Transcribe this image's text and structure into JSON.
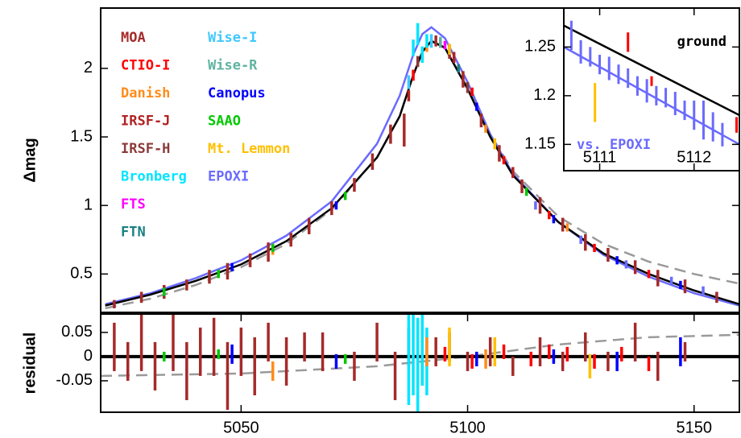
{
  "chart_data": [
    {
      "type": "scatter",
      "ylabel": "Δmag",
      "xlim": [
        5019,
        5160
      ],
      "ylim": [
        0.22,
        2.44
      ],
      "yticks": [
        0.5,
        1,
        1.5,
        2
      ],
      "series": [
        {
          "name": "MOA",
          "color": "#a52a2a",
          "x": [
            5022,
            5028,
            5033,
            5038,
            5043,
            5047,
            5052,
            5056,
            5061,
            5065,
            5070,
            5075,
            5079,
            5083,
            5086,
            5090,
            5093,
            5096,
            5099,
            5103,
            5107,
            5112,
            5116,
            5121,
            5126,
            5131,
            5137,
            5142,
            5148,
            5155
          ],
          "values": [
            0.28,
            0.33,
            0.37,
            0.42,
            0.48,
            0.52,
            0.6,
            0.66,
            0.75,
            0.85,
            0.98,
            1.15,
            1.32,
            1.52,
            1.55,
            2.1,
            2.2,
            2.12,
            1.92,
            1.62,
            1.38,
            1.14,
            1.0,
            0.86,
            0.73,
            0.64,
            0.55,
            0.47,
            0.41,
            0.33
          ],
          "errors": [
            0.03,
            0.04,
            0.05,
            0.04,
            0.05,
            0.06,
            0.05,
            0.07,
            0.05,
            0.06,
            0.05,
            0.05,
            0.06,
            0.07,
            0.12,
            0.05,
            0.04,
            0.05,
            0.06,
            0.05,
            0.06,
            0.05,
            0.06,
            0.05,
            0.06,
            0.05,
            0.05,
            0.06,
            0.05,
            0.04
          ]
        },
        {
          "name": "CTIO-I",
          "color": "#ff0000",
          "x": [
            5088,
            5094,
            5101,
            5108,
            5118,
            5128,
            5140
          ],
          "values": [
            1.95,
            2.18,
            1.83,
            1.33,
            0.93,
            0.69,
            0.5
          ],
          "errors": [
            0.04,
            0.03,
            0.03,
            0.03,
            0.03,
            0.03,
            0.03
          ]
        },
        {
          "name": "Danish",
          "color": "#ff8c1a",
          "x": [
            5057,
            5091,
            5104,
            5122
          ],
          "values": [
            0.68,
            2.15,
            1.56,
            0.84
          ],
          "errors": [
            0.04,
            0.03,
            0.03,
            0.03
          ]
        },
        {
          "name": "IRSF-J",
          "color": "#b22222",
          "x": [
            5087,
            5097,
            5110
          ],
          "values": [
            1.8,
            2.08,
            1.24
          ],
          "errors": [
            0.04,
            0.04,
            0.04
          ]
        },
        {
          "name": "IRSF-H",
          "color": "#8b3a3a",
          "x": [
            5089,
            5100
          ],
          "values": [
            2.05,
            1.86
          ],
          "errors": [
            0.04,
            0.04
          ]
        },
        {
          "name": "Bronberg",
          "color": "#00e5ff",
          "x": [
            5088,
            5089,
            5090,
            5091
          ],
          "values": [
            2.15,
            2.25,
            2.1,
            2.2
          ],
          "errors": [
            0.06,
            0.08,
            0.06,
            0.05
          ]
        },
        {
          "name": "FTS",
          "color": "#ff00ff",
          "x": [
            5095
          ],
          "values": [
            2.17
          ],
          "errors": [
            0.03
          ]
        },
        {
          "name": "FTN",
          "color": "#1a8080",
          "x": [
            5098
          ],
          "values": [
            2.0
          ],
          "errors": [
            0.03
          ]
        },
        {
          "name": "Wise-I",
          "color": "#40c8ff",
          "x": [
            5087,
            5092
          ],
          "values": [
            1.9,
            2.2
          ],
          "errors": [
            0.05,
            0.05
          ]
        },
        {
          "name": "Wise-R",
          "color": "#5fb3a0",
          "x": [
            5094
          ],
          "values": [
            2.19
          ],
          "errors": [
            0.04
          ]
        },
        {
          "name": "Canopus",
          "color": "#0000ff",
          "x": [
            5048,
            5071,
            5102,
            5119,
            5133,
            5147
          ],
          "values": [
            0.55,
            1.0,
            1.72,
            0.9,
            0.6,
            0.42
          ],
          "errors": [
            0.03,
            0.03,
            0.03,
            0.03,
            0.03,
            0.03
          ]
        },
        {
          "name": "SAAO",
          "color": "#00c800",
          "x": [
            5033,
            5045,
            5057,
            5073,
            5113
          ],
          "values": [
            0.37,
            0.5,
            0.69,
            1.07,
            1.1
          ],
          "errors": [
            0.03,
            0.03,
            0.03,
            0.03,
            0.03
          ]
        },
        {
          "name": "Mt. Lemmon",
          "color": "#ffc000",
          "x": [
            5096,
            5106
          ],
          "values": [
            2.14,
            1.45
          ],
          "errors": [
            0.04,
            0.04
          ]
        },
        {
          "name": "EPOXI",
          "color": "#6a6aff",
          "x": [
            5115,
            5125,
            5135,
            5145,
            5152
          ],
          "values": [
            1.0,
            0.75,
            0.57,
            0.45,
            0.38
          ],
          "errors": [
            0.03,
            0.03,
            0.03,
            0.03,
            0.03
          ]
        }
      ],
      "lines": [
        {
          "color": "#9a9a9a",
          "dashed": true,
          "x": [
            5020,
            5030,
            5040,
            5050,
            5060,
            5070,
            5080,
            5085,
            5088,
            5090,
            5092,
            5095,
            5100,
            5105,
            5110,
            5120,
            5130,
            5140,
            5150,
            5160
          ],
          "values": [
            0.25,
            0.32,
            0.42,
            0.55,
            0.72,
            0.97,
            1.35,
            1.65,
            1.95,
            2.12,
            2.2,
            2.15,
            1.86,
            1.52,
            1.25,
            0.92,
            0.72,
            0.59,
            0.5,
            0.43
          ]
        },
        {
          "color": "#6a6aff",
          "dashed": false,
          "x": [
            5020,
            5030,
            5040,
            5050,
            5060,
            5070,
            5080,
            5085,
            5088,
            5090,
            5092,
            5095,
            5100,
            5105,
            5110,
            5120,
            5130,
            5140,
            5150,
            5160
          ],
          "values": [
            0.28,
            0.36,
            0.47,
            0.6,
            0.78,
            1.03,
            1.45,
            1.8,
            2.1,
            2.25,
            2.3,
            2.22,
            1.9,
            1.52,
            1.23,
            0.88,
            0.64,
            0.48,
            0.36,
            0.27
          ]
        },
        {
          "color": "#000000",
          "dashed": false,
          "x": [
            5020,
            5030,
            5040,
            5050,
            5060,
            5070,
            5080,
            5085,
            5088,
            5090,
            5092,
            5095,
            5100,
            5105,
            5110,
            5120,
            5130,
            5140,
            5150,
            5160
          ],
          "values": [
            0.27,
            0.35,
            0.45,
            0.57,
            0.74,
            0.98,
            1.35,
            1.65,
            1.95,
            2.12,
            2.2,
            2.15,
            1.85,
            1.5,
            1.22,
            0.88,
            0.65,
            0.5,
            0.38,
            0.28
          ]
        }
      ]
    },
    {
      "type": "scatter",
      "ylabel": "residual",
      "xlim": [
        5019,
        5160
      ],
      "ylim": [
        -0.115,
        0.088
      ],
      "xticks": [
        5050,
        5100,
        5150
      ],
      "yticks": [
        0.05,
        0,
        -0.05
      ],
      "series": [
        {
          "color": "#a52a2a",
          "x": [
            5022,
            5025,
            5028,
            5031,
            5035,
            5038,
            5041,
            5044,
            5047,
            5050,
            5053,
            5056,
            5060,
            5064,
            5068,
            5075,
            5080,
            5084,
            5087,
            5090,
            5093,
            5096,
            5100,
            5105,
            5110,
            5116,
            5121,
            5126,
            5131,
            5137,
            5142,
            5148
          ],
          "values": [
            0.02,
            -0.01,
            0.03,
            -0.02,
            0.04,
            -0.03,
            0.01,
            0.02,
            -0.04,
            0.01,
            -0.02,
            0.03,
            -0.01,
            0.02,
            0.01,
            -0.02,
            0.03,
            -0.04,
            0.02,
            -0.03,
            0.01,
            0.02,
            -0.01,
            0.01,
            -0.02,
            0.01,
            -0.01,
            0.02,
            -0.01,
            0.03,
            -0.02,
            0.01
          ],
          "errors": [
            0.05,
            0.04,
            0.06,
            0.05,
            0.07,
            0.06,
            0.05,
            0.06,
            0.07,
            0.05,
            0.06,
            0.04,
            0.05,
            0.03,
            0.04,
            0.03,
            0.04,
            0.05,
            0.04,
            0.03,
            0.03,
            0.03,
            0.02,
            0.03,
            0.02,
            0.03,
            0.02,
            0.03,
            0.02,
            0.04,
            0.03,
            0.02
          ]
        },
        {
          "color": "#00e5ff",
          "x": [
            5087,
            5088,
            5089,
            5090,
            5091
          ],
          "values": [
            0,
            0.01,
            -0.02,
            0.02,
            -0.01
          ],
          "errors": [
            0.1,
            0.09,
            0.1,
            0.08,
            0.07
          ]
        },
        {
          "color": "#ff0000",
          "x": [
            5095,
            5101,
            5108,
            5114,
            5118,
            5122,
            5128,
            5134,
            5140
          ],
          "values": [
            0.005,
            -0.01,
            0.01,
            -0.005,
            0.01,
            0.005,
            -0.01,
            0.005,
            -0.015
          ],
          "errors": [
            0.015,
            0.015,
            0.015,
            0.015,
            0.015,
            0.015,
            0.015,
            0.015,
            0.015
          ]
        },
        {
          "color": "#0000ff",
          "x": [
            5048,
            5071,
            5102,
            5119,
            5133,
            5147
          ],
          "values": [
            0.005,
            -0.01,
            -0.005,
            0,
            -0.01,
            0.01
          ],
          "errors": [
            0.02,
            0.015,
            0.015,
            0.015,
            0.02,
            0.03
          ]
        },
        {
          "color": "#ffc000",
          "x": [
            5096,
            5106,
            5127
          ],
          "values": [
            0.02,
            0.01,
            -0.02
          ],
          "errors": [
            0.04,
            0.03,
            0.025
          ]
        },
        {
          "color": "#ff8c1a",
          "x": [
            5057,
            5091,
            5104
          ],
          "values": [
            -0.03,
            0.01,
            -0.005
          ],
          "errors": [
            0.02,
            0.03,
            0.02
          ]
        },
        {
          "color": "#00c800",
          "x": [
            5033,
            5045,
            5073
          ],
          "values": [
            0,
            0.005,
            -0.005
          ],
          "errors": [
            0.01,
            0.01,
            0.01
          ]
        }
      ],
      "lines": [
        {
          "color": "#9a9a9a",
          "dashed": true,
          "x": [
            5019,
            5050,
            5080,
            5100,
            5120,
            5140,
            5160
          ],
          "values": [
            -0.04,
            -0.035,
            -0.02,
            0,
            0.025,
            0.04,
            0.045
          ]
        },
        {
          "color": "#000000",
          "dashed": false,
          "x": [
            5019,
            5160
          ],
          "values": [
            0,
            0
          ]
        }
      ]
    },
    {
      "type": "scatter",
      "xlim": [
        5110.62,
        5112.48
      ],
      "ylim": [
        1.123,
        1.29
      ],
      "xticks": [
        5111,
        5112
      ],
      "yticks": [
        1.15,
        1.2,
        1.25
      ],
      "annotations": [
        {
          "text": "ground",
          "color": "#000000"
        },
        {
          "text": "vs. EPOXI",
          "color": "#6a6aff"
        }
      ],
      "series": [
        {
          "color": "#6a6aff",
          "x": [
            5110.7,
            5110.8,
            5110.9,
            5111.0,
            5111.1,
            5111.2,
            5111.3,
            5111.4,
            5111.5,
            5111.6,
            5111.7,
            5111.8,
            5111.9,
            5112.0,
            5112.1,
            5112.2,
            5112.3
          ],
          "values": [
            1.262,
            1.245,
            1.24,
            1.232,
            1.228,
            1.222,
            1.218,
            1.21,
            1.205,
            1.2,
            1.198,
            1.192,
            1.185,
            1.18,
            1.175,
            1.168,
            1.16
          ],
          "errors": [
            0.015,
            0.012,
            0.01,
            0.01,
            0.012,
            0.01,
            0.01,
            0.01,
            0.012,
            0.01,
            0.01,
            0.012,
            0.01,
            0.015,
            0.02,
            0.015,
            0.012
          ]
        },
        {
          "color": "#ff0000",
          "x": [
            5111.3,
            5111.55,
            5112.45
          ],
          "values": [
            1.255,
            1.215,
            1.17
          ],
          "errors": [
            0.01,
            0.005,
            0.008
          ]
        },
        {
          "color": "#ffc000",
          "x": [
            5110.95
          ],
          "values": [
            1.193
          ],
          "errors": [
            0.02
          ]
        }
      ],
      "lines": [
        {
          "color": "#000000",
          "dashed": false,
          "x": [
            5110.62,
            5112.48
          ],
          "values": [
            1.272,
            1.18
          ]
        },
        {
          "color": "#6a6aff",
          "dashed": false,
          "x": [
            5110.62,
            5112.48
          ],
          "values": [
            1.25,
            1.15
          ]
        }
      ]
    }
  ]
}
